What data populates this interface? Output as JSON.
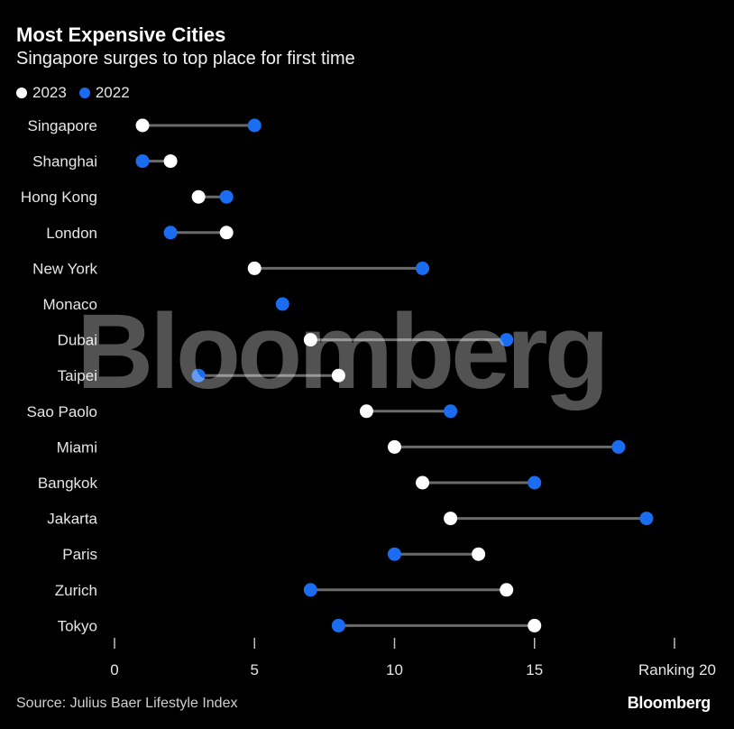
{
  "title": "Most Expensive Cities",
  "subtitle": "Singapore surges to top place for first time",
  "legend": [
    {
      "label": "2023",
      "color": "#ffffff"
    },
    {
      "label": "2022",
      "color": "#1a6cf0"
    }
  ],
  "source": "Source: Julius Baer Lifestyle Index",
  "brand": "Bloomberg",
  "watermark": "Bloomberg",
  "chart_data": {
    "type": "dot-plot",
    "title": "Most Expensive Cities",
    "subtitle": "Singapore surges to top place for first time",
    "xlabel": "Ranking",
    "xlim": [
      0,
      20
    ],
    "x_ticks": [
      0,
      5,
      10,
      15,
      20
    ],
    "x_tick_labels": [
      "0",
      "5",
      "10",
      "15",
      "Ranking 20"
    ],
    "categories": [
      "Singapore",
      "Shanghai",
      "Hong Kong",
      "London",
      "New York",
      "Monaco",
      "Dubai",
      "Taipei",
      "Sao Paolo",
      "Miami",
      "Bangkok",
      "Jakarta",
      "Paris",
      "Zurich",
      "Tokyo"
    ],
    "series": [
      {
        "name": "2023",
        "color": "#ffffff",
        "values": [
          1,
          2,
          3,
          4,
          5,
          null,
          7,
          8,
          9,
          10,
          11,
          12,
          13,
          14,
          15
        ]
      },
      {
        "name": "2022",
        "color": "#1a6cf0",
        "values": [
          5,
          1,
          4,
          2,
          11,
          6,
          14,
          3,
          12,
          18,
          15,
          19,
          10,
          7,
          8
        ]
      }
    ],
    "grid": false,
    "legend_position": "top-left"
  }
}
